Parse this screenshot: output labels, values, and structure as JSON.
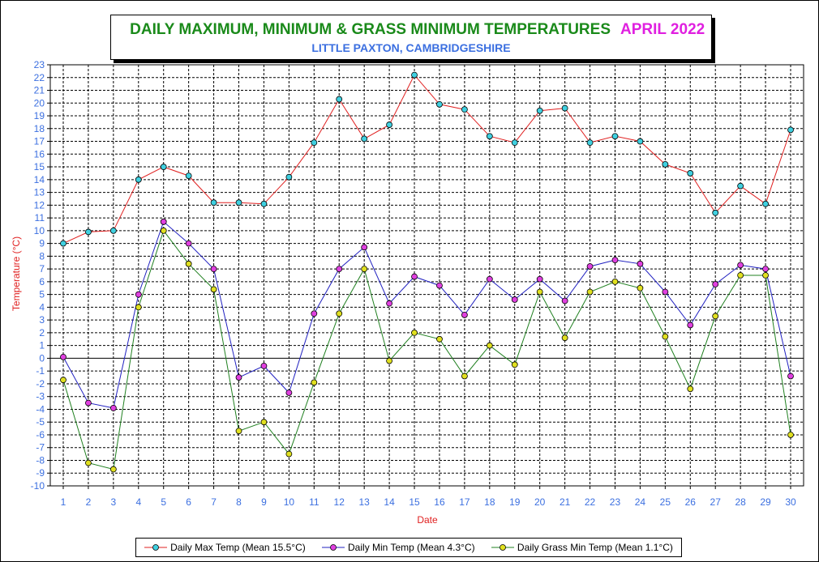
{
  "title": {
    "main": "DAILY MAXIMUM, MINIMUM & GRASS MINIMUM TEMPERATURES",
    "month": "APRIL 2022",
    "subtitle": "LITTLE PAXTON, CAMBRIDGESHIRE"
  },
  "colors": {
    "title_main": "#1a8a1a",
    "title_month": "#e020e0",
    "subtitle": "#3b6fe0",
    "axis_text": "#3b6fe0",
    "axis_title": "#e02020",
    "max_line": "#e02020",
    "max_marker": "#40d0e0",
    "min_line": "#2020c0",
    "min_marker": "#e040e0",
    "grass_line": "#208020",
    "grass_marker": "#e0e020"
  },
  "chart_data": {
    "type": "line",
    "xlabel": "Date",
    "ylabel": "Temperature (°C)",
    "xlim": [
      1,
      30
    ],
    "ylim": [
      -10,
      23
    ],
    "grid": true,
    "legend_position": "bottom",
    "x": [
      1,
      2,
      3,
      4,
      5,
      6,
      7,
      8,
      9,
      10,
      11,
      12,
      13,
      14,
      15,
      16,
      17,
      18,
      19,
      20,
      21,
      22,
      23,
      24,
      25,
      26,
      27,
      28,
      29,
      30
    ],
    "series": [
      {
        "name": "Daily Max Temp (Mean 15.5°C)",
        "values": [
          9.0,
          9.9,
          10.0,
          14.0,
          15.0,
          14.3,
          12.2,
          12.2,
          12.1,
          14.2,
          16.9,
          20.3,
          17.2,
          18.3,
          22.2,
          19.9,
          19.5,
          17.4,
          16.9,
          19.4,
          19.6,
          16.9,
          17.4,
          17.0,
          15.2,
          14.5,
          11.4,
          13.5,
          12.1,
          17.9
        ]
      },
      {
        "name": "Daily Min Temp (Mean 4.3°C)",
        "values": [
          0.1,
          -3.5,
          -3.9,
          5.0,
          10.7,
          9.0,
          7.0,
          -1.5,
          -0.6,
          -2.7,
          3.5,
          7.0,
          8.7,
          4.3,
          6.4,
          5.7,
          3.4,
          6.2,
          4.6,
          6.2,
          4.5,
          7.2,
          7.7,
          7.4,
          5.2,
          2.6,
          5.8,
          7.3,
          7.0,
          -1.4
        ]
      },
      {
        "name": "Daily Grass Min Temp (Mean 1.1°C)",
        "values": [
          -1.7,
          -8.2,
          -8.7,
          4.0,
          10.0,
          7.4,
          5.4,
          -5.7,
          -5.0,
          -7.5,
          -1.9,
          3.5,
          7.0,
          -0.2,
          2.0,
          1.5,
          -1.4,
          1.0,
          -0.5,
          5.2,
          1.6,
          5.2,
          6.0,
          5.5,
          1.7,
          -2.4,
          3.3,
          6.5,
          6.5,
          -6.0
        ]
      }
    ]
  }
}
